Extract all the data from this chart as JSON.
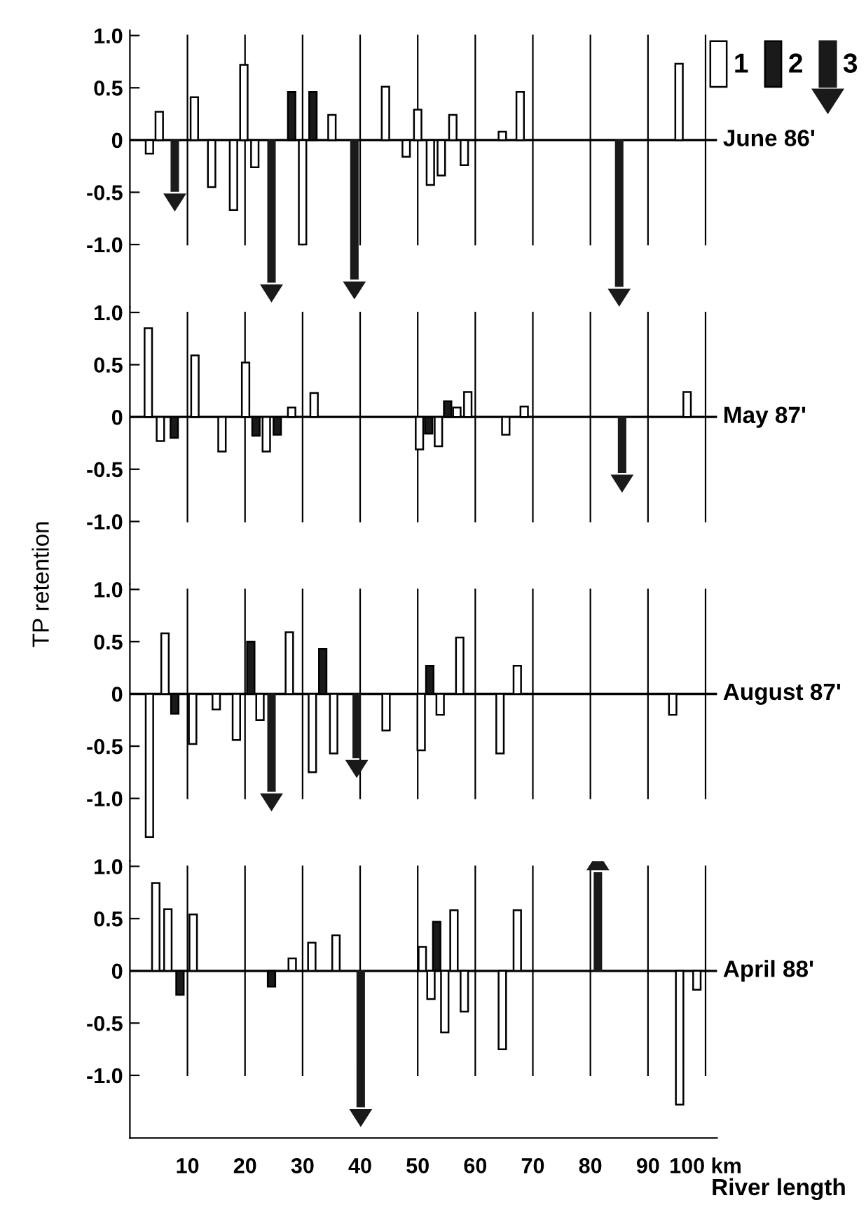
{
  "chart_data": [
    {
      "type": "bar",
      "ylim": [
        -1.6,
        1.05
      ],
      "yticks": [
        {
          "value": -1,
          "label": "-1.0"
        },
        {
          "value": -0.5,
          "label": "-0.5"
        },
        {
          "value": 0,
          "label": "0"
        },
        {
          "value": 0.5,
          "label": "0.5"
        },
        {
          "value": 1,
          "label": "1.0"
        }
      ],
      "xlim": [
        0,
        102
      ],
      "xticks": [
        {
          "value": 10,
          "label": null
        },
        {
          "value": 20,
          "label": null
        },
        {
          "value": 30,
          "label": null
        },
        {
          "value": 40,
          "label": null
        },
        {
          "value": 50,
          "label": null
        },
        {
          "value": 60,
          "label": null
        },
        {
          "value": 70,
          "label": null
        },
        {
          "value": 80,
          "label": null
        },
        {
          "value": 90,
          "label": null
        },
        {
          "value": 100,
          "label": null
        }
      ],
      "tick_labels": "y",
      "grid": "x",
      "legend": "top right",
      "ref_lines": [
        {
          "axis": "y",
          "value": 0,
          "label": "June 86'"
        }
      ],
      "series": [
        {
          "name": "1",
          "color": "#ffffff",
          "x": [
            3.4,
            5.1,
            11.2,
            14.2,
            18.0,
            19.8,
            21.7,
            30.0,
            35.1,
            44.4,
            48.0,
            50.0,
            52.2,
            54.1,
            56.1,
            58.1,
            64.7,
            67.8,
            95.4
          ],
          "values": [
            -0.13,
            0.27,
            0.41,
            -0.45,
            -0.67,
            0.72,
            -0.26,
            -1.0,
            0.24,
            0.51,
            -0.16,
            0.29,
            -0.43,
            -0.34,
            0.24,
            -0.24,
            0.08,
            0.46,
            0.73
          ]
        },
        {
          "name": "2",
          "color": "#1a1a1a",
          "x": [
            28.1,
            31.8
          ],
          "values": [
            0.46,
            0.46
          ]
        },
        {
          "name": "3",
          "marker": "triangle",
          "color": "#1a1a1a",
          "x": [
            7.8,
            24.6,
            39.0,
            85.0
          ],
          "values": [
            -0.49,
            -1.36,
            -1.33,
            -1.4
          ]
        }
      ]
    },
    {
      "type": "bar",
      "ylim": [
        -1.6,
        1.05
      ],
      "yticks": [
        {
          "value": -1,
          "label": "-1.0"
        },
        {
          "value": -0.5,
          "label": "-0.5"
        },
        {
          "value": 0,
          "label": "0"
        },
        {
          "value": 0.5,
          "label": "0.5"
        },
        {
          "value": 1,
          "label": "1.0"
        }
      ],
      "xlim": [
        0,
        102
      ],
      "xticks": [
        {
          "value": 10,
          "label": null
        },
        {
          "value": 20,
          "label": null
        },
        {
          "value": 30,
          "label": null
        },
        {
          "value": 40,
          "label": null
        },
        {
          "value": 50,
          "label": null
        },
        {
          "value": 60,
          "label": null
        },
        {
          "value": 70,
          "label": null
        },
        {
          "value": 80,
          "label": null
        },
        {
          "value": 90,
          "label": null
        },
        {
          "value": 100,
          "label": null
        }
      ],
      "tick_labels": "y",
      "grid": "x",
      "ylabel": "TP retention",
      "ref_lines": [
        {
          "axis": "y",
          "value": 0,
          "label": "May 87'"
        }
      ],
      "series": [
        {
          "color": "#ffffff",
          "x": [
            3.2,
            5.3,
            11.3,
            16.0,
            20.1,
            23.7,
            28.1,
            32.0,
            50.3,
            53.6,
            56.8,
            58.7,
            65.3,
            68.5,
            96.8
          ],
          "values": [
            0.85,
            -0.23,
            0.59,
            -0.33,
            0.52,
            -0.33,
            0.09,
            0.23,
            -0.31,
            -0.28,
            0.09,
            0.24,
            -0.17,
            0.1,
            0.24
          ]
        },
        {
          "color": "#1a1a1a",
          "x": [
            7.7,
            21.9,
            25.6,
            51.9,
            55.2
          ],
          "values": [
            -0.2,
            -0.18,
            -0.17,
            -0.16,
            0.15
          ]
        },
        {
          "marker": "triangle",
          "color": "#1a1a1a",
          "x": [
            85.5
          ],
          "values": [
            -0.53
          ]
        }
      ]
    },
    {
      "type": "bar",
      "ylim": [
        -1.6,
        1.05
      ],
      "yticks": [
        {
          "value": -1,
          "label": "-1.0"
        },
        {
          "value": -0.5,
          "label": "-0.5"
        },
        {
          "value": 0,
          "label": "0"
        },
        {
          "value": 0.5,
          "label": "0.5"
        },
        {
          "value": 1,
          "label": "1.0"
        }
      ],
      "xlim": [
        0,
        102
      ],
      "xticks": [
        {
          "value": 10,
          "label": null
        },
        {
          "value": 20,
          "label": null
        },
        {
          "value": 30,
          "label": null
        },
        {
          "value": 40,
          "label": null
        },
        {
          "value": 50,
          "label": null
        },
        {
          "value": 60,
          "label": null
        },
        {
          "value": 70,
          "label": null
        },
        {
          "value": 80,
          "label": null
        },
        {
          "value": 90,
          "label": null
        },
        {
          "value": 100,
          "label": null
        }
      ],
      "tick_labels": "y",
      "grid": "x",
      "ref_lines": [
        {
          "axis": "y",
          "value": 0,
          "label": "August 87'"
        }
      ],
      "series": [
        {
          "color": "#ffffff",
          "x": [
            3.4,
            6.1,
            10.9,
            15.0,
            18.5,
            22.6,
            27.7,
            31.7,
            35.4,
            44.5,
            50.6,
            53.9,
            57.3,
            64.3,
            67.3,
            94.3
          ],
          "values": [
            -1.37,
            0.58,
            -0.48,
            -0.15,
            -0.44,
            -0.25,
            0.59,
            -0.75,
            -0.57,
            -0.35,
            -0.54,
            -0.2,
            0.54,
            -0.57,
            0.27,
            -0.2
          ]
        },
        {
          "color": "#1a1a1a",
          "x": [
            7.8,
            21.0,
            33.5,
            52.1
          ],
          "values": [
            -0.19,
            0.5,
            0.43,
            0.27
          ]
        },
        {
          "marker": "triangle",
          "color": "#1a1a1a",
          "x": [
            24.6,
            39.4
          ],
          "values": [
            -0.93,
            -0.61
          ]
        }
      ]
    },
    {
      "type": "bar",
      "ylim": [
        -1.6,
        1.05
      ],
      "yticks": [
        {
          "value": -1,
          "label": "-1.0"
        },
        {
          "value": -0.5,
          "label": "-0.5"
        },
        {
          "value": 0,
          "label": "0"
        },
        {
          "value": 0.5,
          "label": "0.5"
        },
        {
          "value": 1,
          "label": "1.0"
        }
      ],
      "xlim": [
        0,
        102
      ],
      "xticks": [
        10,
        20,
        30,
        40,
        50,
        60,
        70,
        80,
        90,
        {
          "value": 100,
          "label": "100 km"
        }
      ],
      "grid": "x",
      "xlabel": "River length",
      "ref_lines": [
        {
          "axis": "y",
          "value": 0,
          "label": "April 88'"
        }
      ],
      "series": [
        {
          "color": "#ffffff",
          "x": [
            4.5,
            6.6,
            11.0,
            28.2,
            31.6,
            35.8,
            50.8,
            52.3,
            54.7,
            56.3,
            58.1,
            64.7,
            67.3,
            95.5,
            98.5
          ],
          "values": [
            0.84,
            0.59,
            0.54,
            0.12,
            0.27,
            0.34,
            0.23,
            -0.27,
            -0.59,
            0.58,
            -0.39,
            -0.75,
            0.58,
            -1.28,
            -0.18
          ]
        },
        {
          "color": "#1a1a1a",
          "x": [
            8.7,
            24.6,
            53.3
          ],
          "values": [
            -0.23,
            -0.15,
            0.47
          ]
        },
        {
          "marker": "triangle",
          "color": "#1a1a1a",
          "x": [
            40.1,
            81.3
          ],
          "values": [
            -1.3,
            0.94
          ]
        }
      ]
    }
  ]
}
